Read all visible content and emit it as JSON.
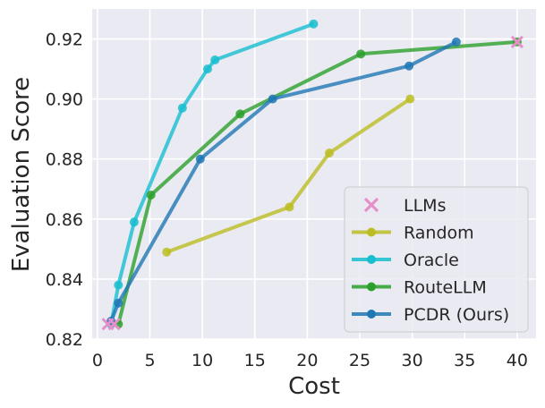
{
  "chart_data": {
    "type": "line",
    "title": "",
    "xlabel": "Cost",
    "ylabel": "Evaluation Score",
    "xlim": [
      -0.5,
      41.8
    ],
    "ylim": [
      0.82,
      0.93
    ],
    "xticks": [
      0,
      5,
      10,
      15,
      20,
      25,
      30,
      35,
      40
    ],
    "xtick_labels": [
      "0",
      "5",
      "10",
      "15",
      "20",
      "25",
      "30",
      "35",
      "40"
    ],
    "yticks": [
      0.82,
      0.84,
      0.86,
      0.88,
      0.9,
      0.92
    ],
    "ytick_labels": [
      "0.82",
      "0.84",
      "0.86",
      "0.88",
      "0.90",
      "0.92"
    ],
    "grid": true,
    "legend_position": "lower-right",
    "llms": {
      "name": "LLMs",
      "marker": "x",
      "color": "#e58fca",
      "points": [
        [
          1.0,
          0.825
        ],
        [
          1.6,
          0.825
        ],
        [
          40.0,
          0.919
        ]
      ]
    },
    "series": [
      {
        "name": "Random",
        "color": "#bcbd22",
        "x": [
          6.6,
          18.3,
          22.1,
          29.8
        ],
        "y": [
          0.849,
          0.864,
          0.882,
          0.9
        ]
      },
      {
        "name": "Oracle",
        "color": "#17becf",
        "x": [
          1.3,
          2.0,
          3.5,
          8.1,
          10.5,
          11.2,
          20.6
        ],
        "y": [
          0.825,
          0.838,
          0.859,
          0.897,
          0.91,
          0.913,
          0.925
        ]
      },
      {
        "name": "RouteLLM",
        "color": "#2ca02c",
        "x": [
          2.0,
          5.1,
          13.6,
          25.1,
          40.0
        ],
        "y": [
          0.825,
          0.868,
          0.895,
          0.915,
          0.919
        ]
      },
      {
        "name": "PCDR (Ours)",
        "color": "#1f77b4",
        "x": [
          1.3,
          2.0,
          9.8,
          16.7,
          29.7,
          34.2
        ],
        "y": [
          0.826,
          0.832,
          0.88,
          0.9,
          0.911,
          0.919
        ]
      }
    ]
  }
}
